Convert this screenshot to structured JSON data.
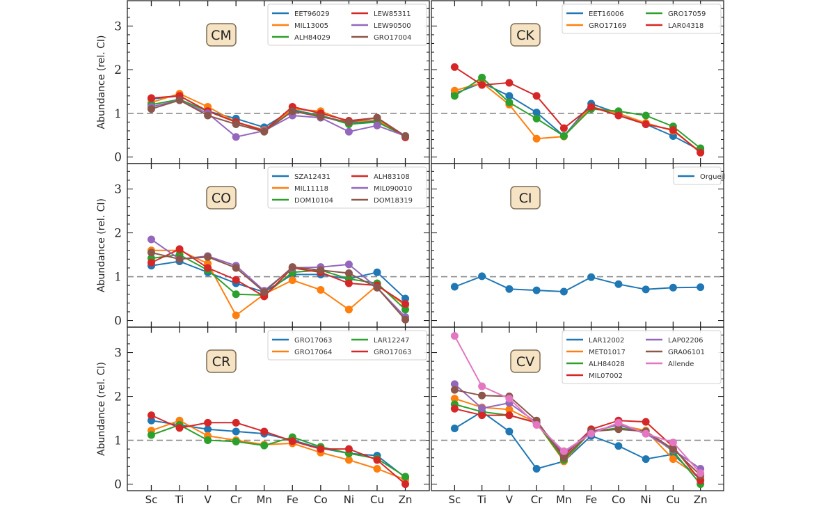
{
  "chart_data": {
    "type": "line",
    "layout": "3x2 grid of panels",
    "x_categories": [
      "Sc",
      "Ti",
      "V",
      "Cr",
      "Mn",
      "Fe",
      "Co",
      "Ni",
      "Cu",
      "Zn"
    ],
    "ylabel": "Abundance (rel. CI)",
    "yticks": [
      0,
      1,
      2,
      3
    ],
    "ylim": [
      -0.15,
      3.58
    ],
    "reference_line": {
      "y": 1,
      "style": "dashed",
      "color": "#888888"
    },
    "grid": false,
    "legend_placement": "top-right",
    "panels": [
      {
        "label": "CM",
        "series": [
          {
            "name": "EET96029",
            "color": "#1f77b4",
            "values": [
              1.33,
              1.4,
              1.05,
              0.88,
              0.68,
              1.08,
              0.95,
              0.78,
              0.82,
              0.48
            ]
          },
          {
            "name": "MIL13005",
            "color": "#ff7f0e",
            "values": [
              1.25,
              1.45,
              1.15,
              0.8,
              0.62,
              1.1,
              1.05,
              0.8,
              0.85,
              0.48
            ]
          },
          {
            "name": "ALH84029",
            "color": "#2ca02c",
            "values": [
              1.2,
              1.32,
              1.05,
              0.8,
              0.6,
              1.05,
              0.95,
              0.75,
              0.8,
              0.48
            ]
          },
          {
            "name": "LEW85311",
            "color": "#d62728",
            "values": [
              1.35,
              1.4,
              1.05,
              0.8,
              0.6,
              1.15,
              1.0,
              0.83,
              0.9,
              0.45
            ]
          },
          {
            "name": "LEW90500",
            "color": "#9467bd",
            "values": [
              1.15,
              1.3,
              1.0,
              0.46,
              0.6,
              0.95,
              0.9,
              0.58,
              0.72,
              0.48
            ]
          },
          {
            "name": "GRO17004",
            "color": "#8c564b",
            "values": [
              1.1,
              1.3,
              0.95,
              0.75,
              0.58,
              1.05,
              0.92,
              0.8,
              0.9,
              0.48
            ]
          }
        ]
      },
      {
        "label": "CK",
        "series": [
          {
            "name": "EET16006",
            "color": "#1f77b4",
            "values": [
              1.45,
              1.7,
              1.4,
              1.02,
              0.48,
              1.22,
              1.0,
              0.75,
              0.48,
              0.15
            ]
          },
          {
            "name": "GRO17169",
            "color": "#ff7f0e",
            "values": [
              1.52,
              1.7,
              1.2,
              0.42,
              0.47,
              1.15,
              1.0,
              0.78,
              0.6,
              0.12
            ]
          },
          {
            "name": "GRO17059",
            "color": "#2ca02c",
            "values": [
              1.4,
              1.82,
              1.25,
              0.88,
              0.48,
              1.1,
              1.05,
              0.95,
              0.7,
              0.2
            ]
          },
          {
            "name": "LAR04318",
            "color": "#d62728",
            "values": [
              2.06,
              1.65,
              1.7,
              1.4,
              0.66,
              1.15,
              0.95,
              0.75,
              0.62,
              0.1
            ]
          }
        ]
      },
      {
        "label": "CO",
        "series": [
          {
            "name": "SZA12431",
            "color": "#1f77b4",
            "values": [
              1.25,
              1.35,
              1.1,
              0.85,
              0.65,
              1.05,
              1.05,
              0.95,
              1.1,
              0.5
            ]
          },
          {
            "name": "MIL11118",
            "color": "#ff7f0e",
            "values": [
              1.6,
              1.6,
              1.3,
              0.12,
              0.6,
              0.92,
              0.7,
              0.25,
              0.8,
              0.35
            ]
          },
          {
            "name": "DOM10104",
            "color": "#2ca02c",
            "values": [
              1.42,
              1.5,
              1.15,
              0.6,
              0.58,
              1.1,
              1.15,
              0.95,
              0.85,
              0.25
            ]
          },
          {
            "name": "ALH83108",
            "color": "#d62728",
            "values": [
              1.32,
              1.63,
              1.2,
              0.93,
              0.55,
              1.2,
              1.1,
              0.85,
              0.8,
              0.38
            ]
          },
          {
            "name": "MIL090010",
            "color": "#9467bd",
            "values": [
              1.85,
              1.4,
              1.47,
              1.25,
              0.68,
              1.2,
              1.22,
              1.28,
              0.75,
              0.08
            ]
          },
          {
            "name": "DOM18319",
            "color": "#8c564b",
            "values": [
              1.55,
              1.4,
              1.45,
              1.2,
              0.65,
              1.22,
              1.15,
              1.08,
              0.75,
              0.02
            ]
          }
        ]
      },
      {
        "label": "CI",
        "series": [
          {
            "name": "Orgueil",
            "color": "#1f77b4",
            "values": [
              0.77,
              1.01,
              0.72,
              0.69,
              0.66,
              0.99,
              0.83,
              0.71,
              0.75,
              0.76
            ]
          }
        ]
      },
      {
        "label": "CR",
        "series": [
          {
            "name": "GRO17063",
            "color": "#1f77b4",
            "values": [
              1.45,
              1.35,
              1.25,
              1.2,
              1.15,
              1.0,
              0.82,
              0.7,
              0.65,
              0.15
            ]
          },
          {
            "name": "GRO17064",
            "color": "#ff7f0e",
            "values": [
              1.22,
              1.45,
              1.1,
              1.0,
              0.9,
              0.93,
              0.72,
              0.55,
              0.35,
              0.1
            ]
          },
          {
            "name": "LAR12247",
            "color": "#2ca02c",
            "values": [
              1.12,
              1.35,
              1.0,
              0.97,
              0.88,
              1.07,
              0.85,
              0.7,
              0.58,
              0.17
            ]
          },
          {
            "name": "GRO17063",
            "color": "#d62728",
            "values": [
              1.57,
              1.28,
              1.4,
              1.4,
              1.2,
              0.98,
              0.8,
              0.8,
              0.55,
              0.0
            ]
          }
        ]
      },
      {
        "label": "CV",
        "series": [
          {
            "name": "LAR12002",
            "color": "#1f77b4",
            "values": [
              1.27,
              1.65,
              1.2,
              0.35,
              0.52,
              1.1,
              0.87,
              0.57,
              0.68,
              0.1
            ]
          },
          {
            "name": "MET01017",
            "color": "#ff7f0e",
            "values": [
              1.95,
              1.75,
              1.7,
              1.4,
              0.52,
              1.2,
              1.35,
              1.22,
              0.57,
              0.15
            ]
          },
          {
            "name": "ALH84028",
            "color": "#2ca02c",
            "values": [
              1.82,
              1.65,
              1.57,
              1.4,
              0.55,
              1.2,
              1.28,
              1.2,
              0.75,
              0.0
            ]
          },
          {
            "name": "MIL07002",
            "color": "#d62728",
            "values": [
              1.72,
              1.57,
              1.57,
              1.4,
              0.65,
              1.25,
              1.45,
              1.42,
              0.85,
              0.08
            ]
          },
          {
            "name": "LAP02206",
            "color": "#9467bd",
            "values": [
              2.28,
              1.73,
              1.85,
              1.4,
              0.7,
              1.2,
              1.35,
              1.15,
              0.78,
              0.35
            ]
          },
          {
            "name": "GRA06101",
            "color": "#8c564b",
            "values": [
              2.15,
              2.02,
              2.0,
              1.45,
              0.6,
              1.2,
              1.25,
              1.2,
              0.8,
              0.2
            ]
          },
          {
            "name": "Allende",
            "color": "#e377c2",
            "values": [
              3.38,
              2.23,
              1.95,
              1.35,
              0.75,
              1.15,
              1.4,
              1.15,
              0.95,
              0.25
            ]
          }
        ]
      }
    ]
  }
}
